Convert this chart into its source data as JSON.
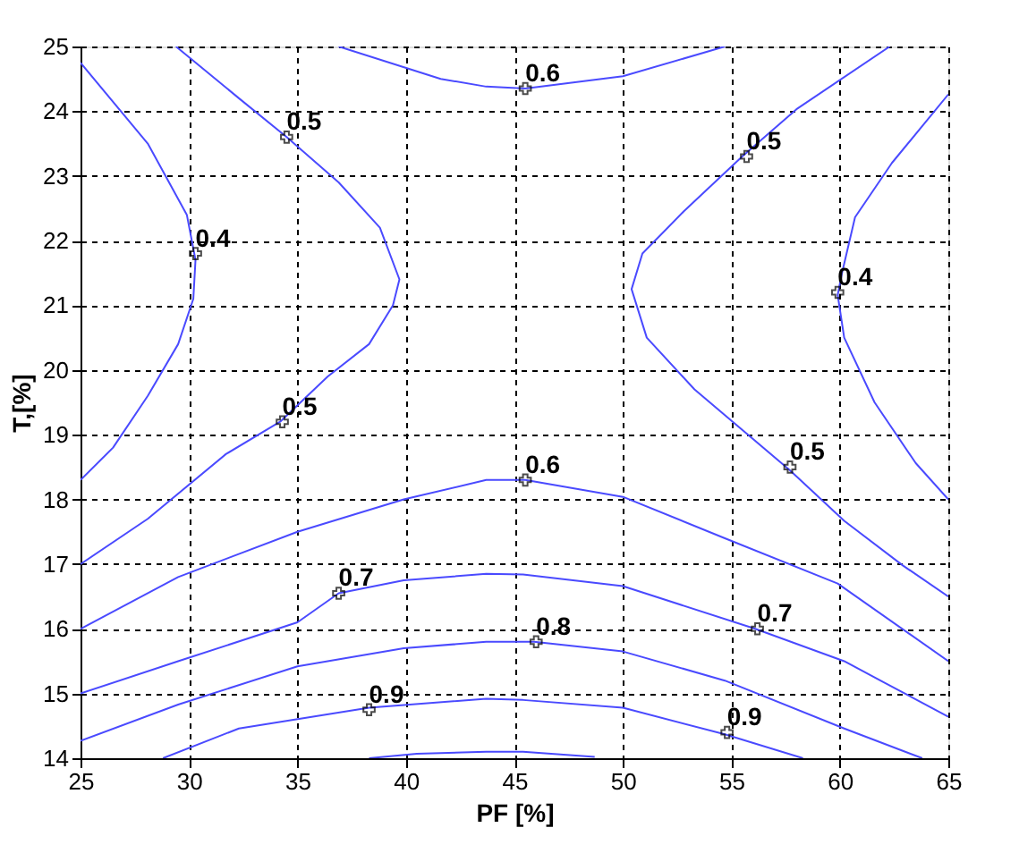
{
  "chart_data": {
    "type": "line",
    "xlabel": "PF [%]",
    "ylabel": "T,[%]",
    "xlim": [
      25,
      65
    ],
    "ylim": [
      14,
      25
    ],
    "xticks": [
      25,
      30,
      35,
      40,
      45,
      50,
      55,
      60,
      65
    ],
    "yticks": [
      14,
      15,
      16,
      17,
      18,
      19,
      20,
      21,
      22,
      23,
      24,
      25
    ],
    "grid": true,
    "line_style": "solid",
    "marker": "none",
    "series": [
      {
        "color": "#4a4aff",
        "x": [
          25,
          28.1,
          29.9,
          30.3,
          30.2,
          29.5,
          28.1,
          26.5,
          25
        ],
        "values": [
          24.75,
          23.5,
          22.4,
          21.7,
          21.1,
          20.4,
          19.6,
          18.8,
          18.3
        ]
      },
      {
        "color": "#4a4aff",
        "x": [
          29.4,
          32.3,
          34.5,
          36.9,
          38.8,
          39.7,
          39.4,
          38.3,
          36.4,
          34.2,
          31.7,
          28.1,
          25
        ],
        "values": [
          25,
          24.2,
          23.6,
          22.9,
          22.2,
          21.4,
          21.0,
          20.4,
          19.9,
          19.2,
          18.7,
          17.7,
          17.0
        ]
      },
      {
        "color": "#4a4aff",
        "x": [
          36.9,
          41.6,
          43.7,
          45.5,
          50,
          54.7
        ],
        "values": [
          25,
          24.5,
          24.38,
          24.35,
          24.54,
          25
        ]
      },
      {
        "color": "#4a4aff",
        "x": [
          62.3,
          58,
          55.5,
          52.8,
          50.9,
          50.4,
          51.1,
          53.3,
          57.7,
          60.2,
          62.9,
          65
        ],
        "values": [
          25,
          24.03,
          23.3,
          22.45,
          21.8,
          21.25,
          20.5,
          19.7,
          18.45,
          17.67,
          16.98,
          16.5
        ]
      },
      {
        "color": "#4a4aff",
        "x": [
          65,
          62.4,
          60.7,
          60.1,
          59.9,
          60.2,
          61.6,
          63.5,
          65
        ],
        "values": [
          24.26,
          23.2,
          22.36,
          21.5,
          21.16,
          20.5,
          19.5,
          18.56,
          18.0
        ]
      },
      {
        "color": "#4a4aff",
        "x": [
          25,
          29.5,
          35,
          39.9,
          43.7,
          45.5,
          50,
          54.7,
          59.9,
          65
        ],
        "values": [
          16.0,
          16.8,
          17.5,
          18.0,
          18.3,
          18.3,
          18.04,
          17.4,
          16.7,
          15.5
        ]
      },
      {
        "color": "#4a4aff",
        "x": [
          25,
          29.5,
          35,
          36.9,
          39.9,
          43.7,
          45.4,
          50,
          56.1,
          60.2,
          65
        ],
        "values": [
          15.0,
          15.5,
          16.1,
          16.55,
          16.75,
          16.85,
          16.84,
          16.66,
          16.0,
          15.5,
          14.64
        ]
      },
      {
        "color": "#4a4aff",
        "x": [
          25,
          29.5,
          35,
          39.9,
          43.7,
          45.9,
          50,
          54.7,
          60.2,
          63.8
        ],
        "values": [
          14.27,
          14.83,
          15.42,
          15.7,
          15.8,
          15.8,
          15.65,
          15.2,
          14.46,
          14.0
        ]
      },
      {
        "color": "#4a4aff",
        "x": [
          28.8,
          32.3,
          38.3,
          43.7,
          45.4,
          50,
          54.7,
          58.3
        ],
        "values": [
          14.0,
          14.46,
          14.78,
          14.92,
          14.9,
          14.78,
          14.37,
          14.0
        ]
      },
      {
        "color": "#4a4aff",
        "x": [
          38.3,
          40.5,
          43.7,
          45.4,
          48.7
        ],
        "values": [
          14.0,
          14.07,
          14.1,
          14.1,
          14.02
        ]
      }
    ],
    "annotations": [
      {
        "text": "0.5",
        "x": 34.5,
        "y": 23.6
      },
      {
        "text": "0.4",
        "x": 30.3,
        "y": 21.8
      },
      {
        "text": "0.5",
        "x": 34.3,
        "y": 19.2
      },
      {
        "text": "0.6",
        "x": 45.5,
        "y": 24.35
      },
      {
        "text": "0.5",
        "x": 55.7,
        "y": 23.3
      },
      {
        "text": "0.4",
        "x": 59.9,
        "y": 21.2
      },
      {
        "text": "0.5",
        "x": 57.7,
        "y": 18.5
      },
      {
        "text": "0.6",
        "x": 45.5,
        "y": 18.3
      },
      {
        "text": "0.7",
        "x": 36.9,
        "y": 16.55
      },
      {
        "text": "0.7",
        "x": 56.2,
        "y": 16.0
      },
      {
        "text": "0.8",
        "x": 46,
        "y": 15.8
      },
      {
        "text": "0.9",
        "x": 38.3,
        "y": 14.75
      },
      {
        "text": "0.9",
        "x": 54.8,
        "y": 14.4
      }
    ]
  }
}
